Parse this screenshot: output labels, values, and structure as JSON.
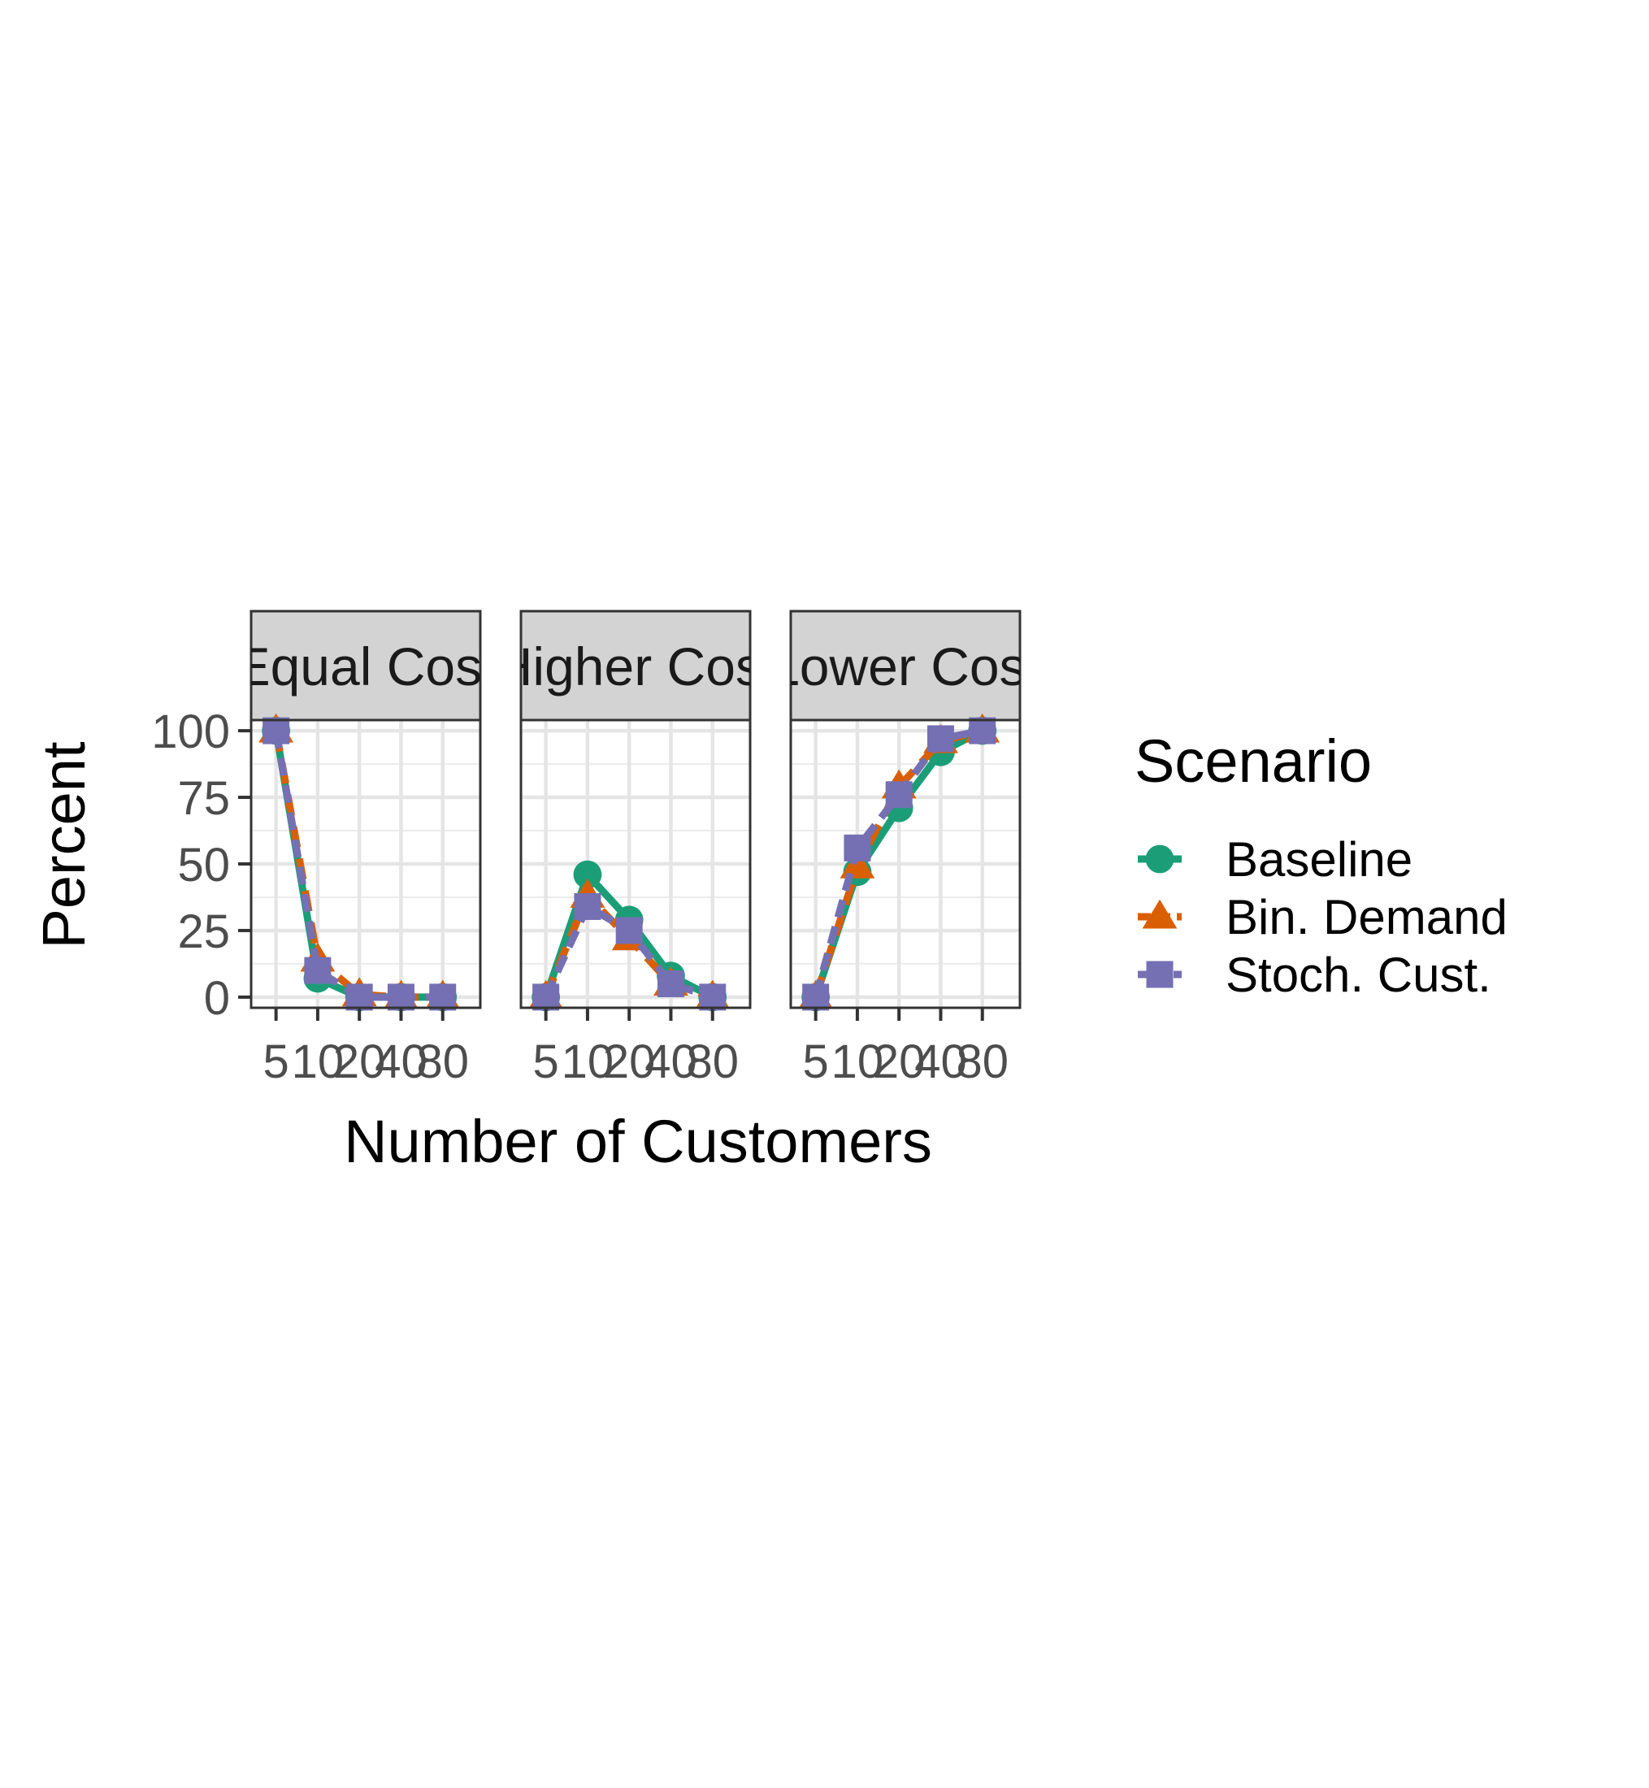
{
  "chart_data": {
    "type": "line",
    "xlabel": "Number of Customers",
    "ylabel": "Percent",
    "x": [
      "5",
      "10",
      "20",
      "40",
      "80"
    ],
    "yticks": [
      0,
      25,
      50,
      75,
      100
    ],
    "ylim": [
      -4,
      104
    ],
    "grid": true,
    "legend": {
      "title": "Scenario",
      "position": "right",
      "entries": [
        "Baseline",
        "Bin. Demand",
        "Stoch. Cust."
      ]
    },
    "styles": [
      {
        "color": "#1b9e77",
        "marker": "circle",
        "dash": "solid"
      },
      {
        "color": "#d95f02",
        "marker": "triangle",
        "dash": "dashed"
      },
      {
        "color": "#7570b3",
        "marker": "square",
        "dash": "dotted"
      }
    ],
    "panels": [
      {
        "title": "Equal Cost",
        "series": [
          {
            "name": "Baseline",
            "values": [
              100,
              7,
              0,
              0,
              0
            ]
          },
          {
            "name": "Bin. Demand",
            "values": [
              100,
              14,
              1,
              0,
              0
            ]
          },
          {
            "name": "Stoch. Cust.",
            "values": [
              100,
              10,
              0,
              0,
              0
            ]
          }
        ]
      },
      {
        "title": "Higher Cost",
        "series": [
          {
            "name": "Baseline",
            "values": [
              0,
              46,
              29,
              8,
              0
            ]
          },
          {
            "name": "Bin. Demand",
            "values": [
              0,
              38,
              22,
              5,
              0
            ]
          },
          {
            "name": "Stoch. Cust.",
            "values": [
              0,
              34,
              25,
              5,
              0
            ]
          }
        ]
      },
      {
        "title": "Lower Cost",
        "series": [
          {
            "name": "Baseline",
            "values": [
              0,
              47,
              71,
              92,
              100
            ]
          },
          {
            "name": "Bin. Demand",
            "values": [
              0,
              49,
              79,
              96,
              100
            ]
          },
          {
            "name": "Stoch. Cust.",
            "values": [
              0,
              56,
              76,
              97,
              100
            ]
          }
        ]
      }
    ]
  }
}
